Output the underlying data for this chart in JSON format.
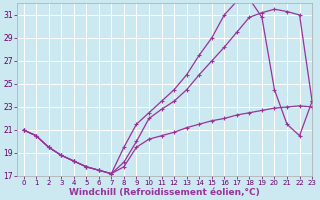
{
  "line1_x": [
    0,
    1,
    2,
    3,
    4,
    5,
    6,
    7,
    8,
    9,
    10,
    11,
    12,
    13,
    14,
    15,
    16,
    17,
    18,
    19,
    20,
    21,
    22,
    23
  ],
  "line1_y": [
    21.0,
    20.5,
    19.5,
    18.8,
    18.3,
    17.8,
    17.5,
    17.2,
    19.5,
    21.5,
    22.5,
    23.5,
    24.5,
    25.8,
    27.5,
    29.0,
    31.0,
    32.2,
    32.4,
    30.8,
    24.5,
    21.5,
    20.5,
    23.5
  ],
  "line2_x": [
    0,
    1,
    2,
    3,
    4,
    5,
    6,
    7,
    8,
    9,
    10,
    11,
    12,
    13,
    14,
    15,
    16,
    17,
    18,
    19,
    20,
    21,
    22,
    23
  ],
  "line2_y": [
    21.0,
    20.5,
    19.5,
    18.8,
    18.3,
    17.8,
    17.5,
    17.2,
    18.2,
    20.0,
    22.0,
    22.8,
    23.5,
    24.5,
    25.8,
    27.0,
    28.2,
    29.5,
    30.8,
    31.2,
    31.5,
    31.3,
    31.0,
    23.5
  ],
  "line3_x": [
    0,
    1,
    2,
    3,
    4,
    5,
    6,
    7,
    8,
    9,
    10,
    11,
    12,
    13,
    14,
    15,
    16,
    17,
    18,
    19,
    20,
    21,
    22,
    23
  ],
  "line3_y": [
    21.0,
    20.5,
    19.5,
    18.8,
    18.3,
    17.8,
    17.5,
    17.2,
    17.8,
    19.5,
    20.2,
    20.5,
    20.8,
    21.2,
    21.5,
    21.8,
    22.0,
    22.3,
    22.5,
    22.7,
    22.9,
    23.0,
    23.1,
    23.0
  ],
  "color": "#993399",
  "bg_color": "#cce8f0",
  "grid_color": "#ffffff",
  "xlabel": "Windchill (Refroidissement éolien,°C)",
  "ylim": [
    17,
    32
  ],
  "xlim": [
    -0.5,
    23
  ],
  "yticks": [
    17,
    19,
    21,
    23,
    25,
    27,
    29,
    31
  ],
  "xticks": [
    0,
    1,
    2,
    3,
    4,
    5,
    6,
    7,
    8,
    9,
    10,
    11,
    12,
    13,
    14,
    15,
    16,
    17,
    18,
    19,
    20,
    21,
    22,
    23
  ],
  "xlabel_fontsize": 6.5,
  "tick_fontsize": 6,
  "line_width": 0.9,
  "marker": "+",
  "marker_size": 3.5
}
